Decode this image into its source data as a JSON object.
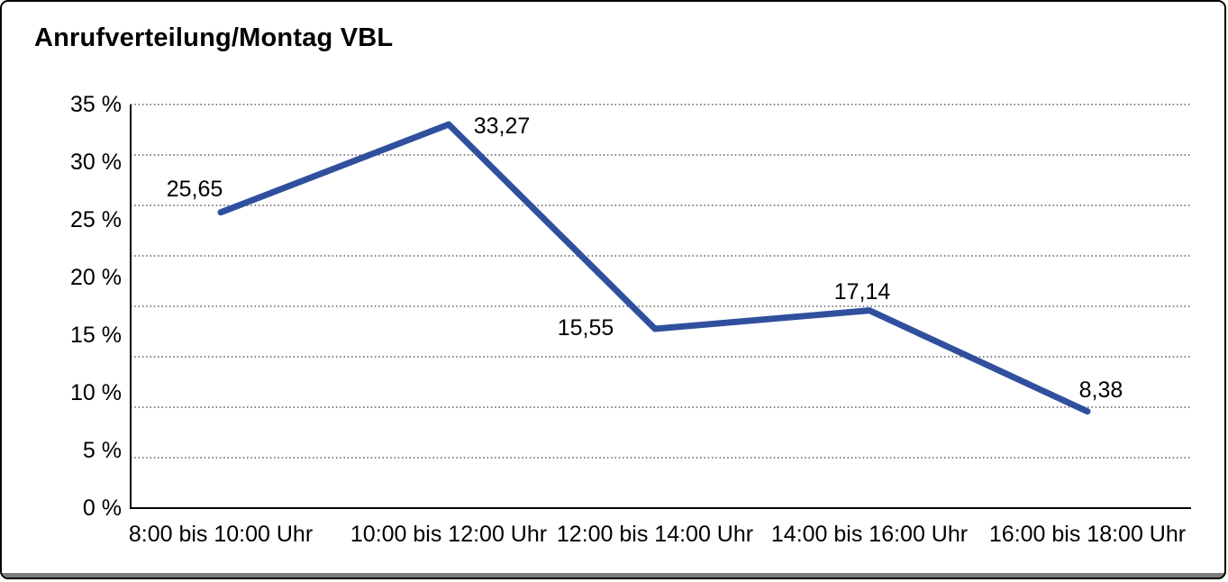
{
  "title": "Anrufverteilung/Montag VBL",
  "chart_data": {
    "type": "line",
    "title": "Anrufverteilung/Montag VBL",
    "categories": [
      "8:00 bis 10:00 Uhr",
      "10:00 bis 12:00 Uhr",
      "12:00 bis 14:00 Uhr",
      "14:00 bis 16:00 Uhr",
      "16:00 bis 18:00 Uhr"
    ],
    "values": [
      25.65,
      33.27,
      15.55,
      17.14,
      8.38
    ],
    "value_labels": [
      "25,65",
      "33,27",
      "15,55",
      "17,14",
      "8,38"
    ],
    "y_tick_labels": [
      "35 %",
      "30 %",
      "25 %",
      "20 %",
      "15 %",
      "10 %",
      "5 %",
      "0 %"
    ],
    "ylim": [
      0,
      35
    ],
    "xlabel": "",
    "ylabel": "",
    "legend": "none",
    "grid": "horizontal-dotted",
    "line_color": "#30509E",
    "axis_color": "#000000",
    "grid_color": "#5a5a5a",
    "text_color": "#000000"
  }
}
